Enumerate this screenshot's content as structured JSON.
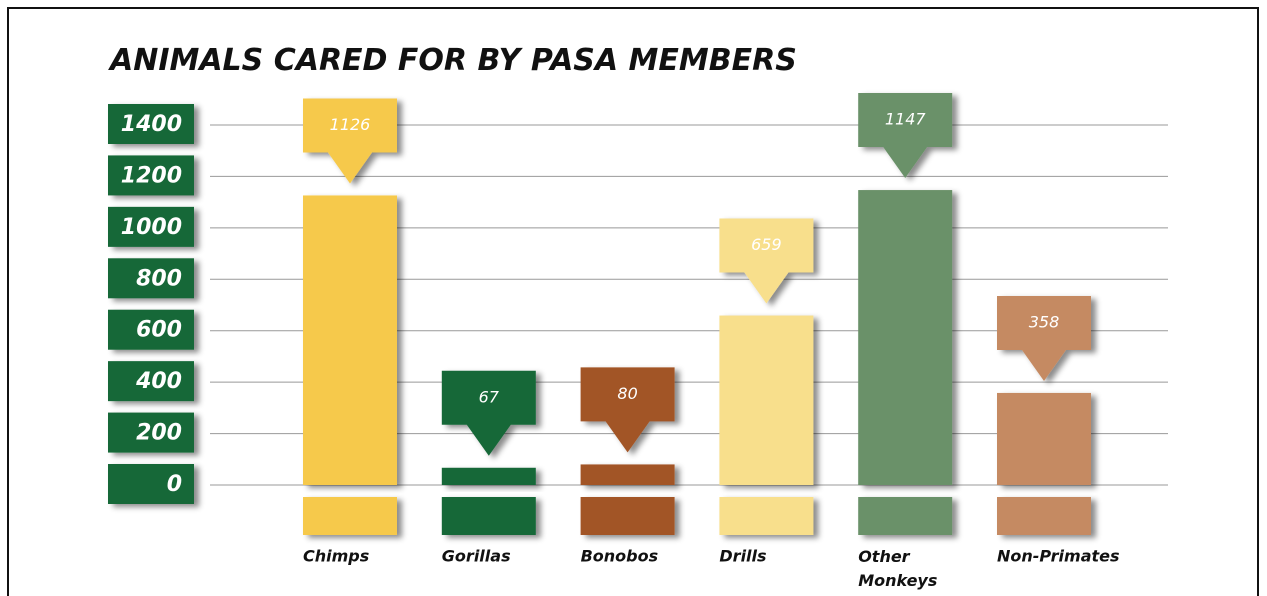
{
  "chart_data": {
    "type": "bar",
    "title": "ANIMALS CARED FOR BY PASA MEMBERS",
    "categories": [
      "Chimps",
      "Gorillas",
      "Bonobos",
      "Drills",
      "Other Monkeys",
      "Non-Primates"
    ],
    "values": [
      1126,
      67,
      80,
      659,
      1147,
      358
    ],
    "colors": [
      "#f6c94b",
      "#176839",
      "#a25526",
      "#f8df8c",
      "#6b9169",
      "#c58a62"
    ],
    "ylim": [
      0,
      1400
    ],
    "yticks": [
      0,
      200,
      400,
      600,
      800,
      1000,
      1200,
      1400
    ],
    "grid": true
  }
}
